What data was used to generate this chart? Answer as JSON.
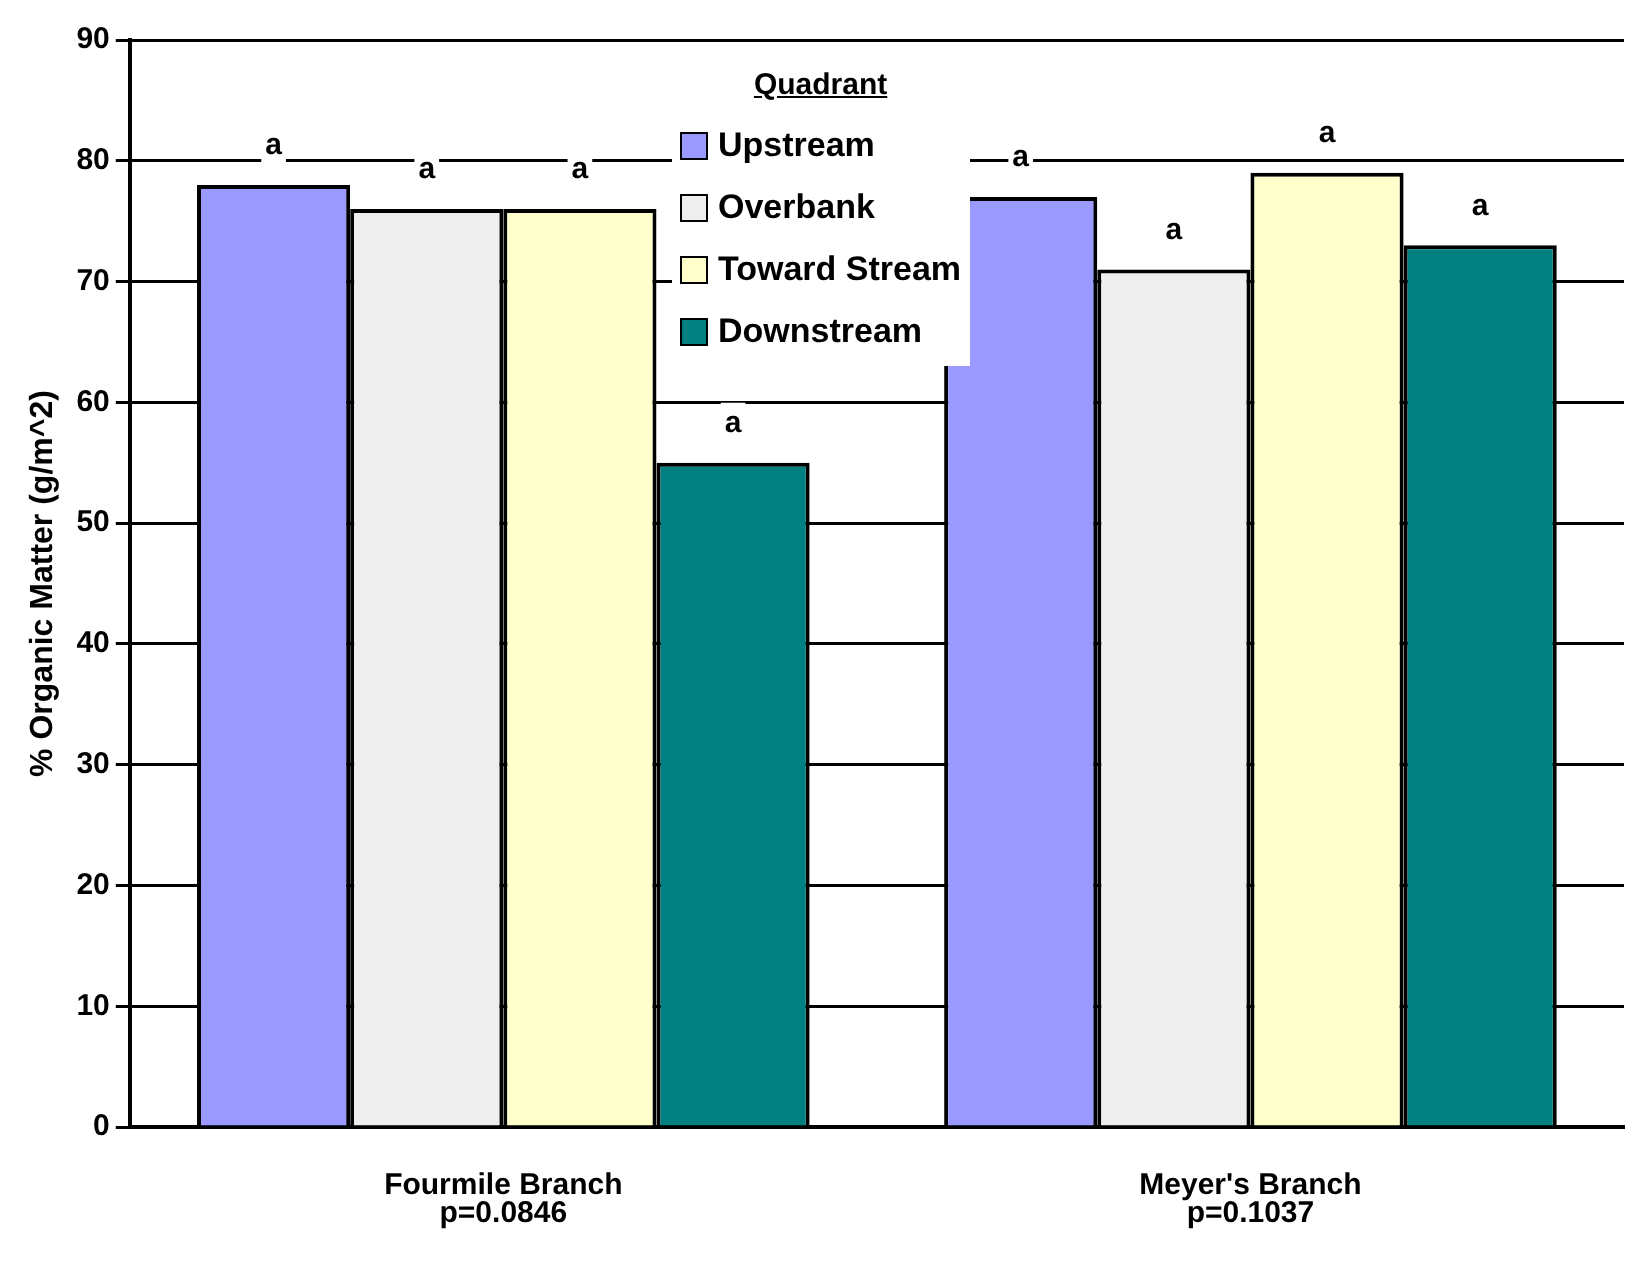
{
  "chart_data": {
    "type": "bar",
    "ylabel": "% Organic Matter (g/m^2)",
    "legend_title": "Quadrant",
    "legend": "top",
    "grid": "y",
    "categories": [
      "Fourmile Branch\np=0.0846",
      "Meyer's Branch\np=0.1037"
    ],
    "ylim": [
      0,
      90
    ],
    "yticks": [
      0,
      10,
      20,
      30,
      40,
      50,
      60,
      70,
      80,
      90
    ],
    "series": [
      {
        "name": "Upstream",
        "color": "#9999ff",
        "values": [
          78,
          77
        ],
        "value_labels": [
          "a",
          "a"
        ]
      },
      {
        "name": "Overbank",
        "color": "#eeeeee",
        "values": [
          76,
          71
        ],
        "value_labels": [
          "a",
          "a"
        ]
      },
      {
        "name": "Toward Stream",
        "color": "#ffffcc",
        "values": [
          76,
          79
        ],
        "value_labels": [
          "a",
          "a"
        ]
      },
      {
        "name": "Downstream",
        "color": "#008080",
        "values": [
          55,
          73
        ],
        "value_labels": [
          "a",
          "a"
        ]
      }
    ]
  }
}
